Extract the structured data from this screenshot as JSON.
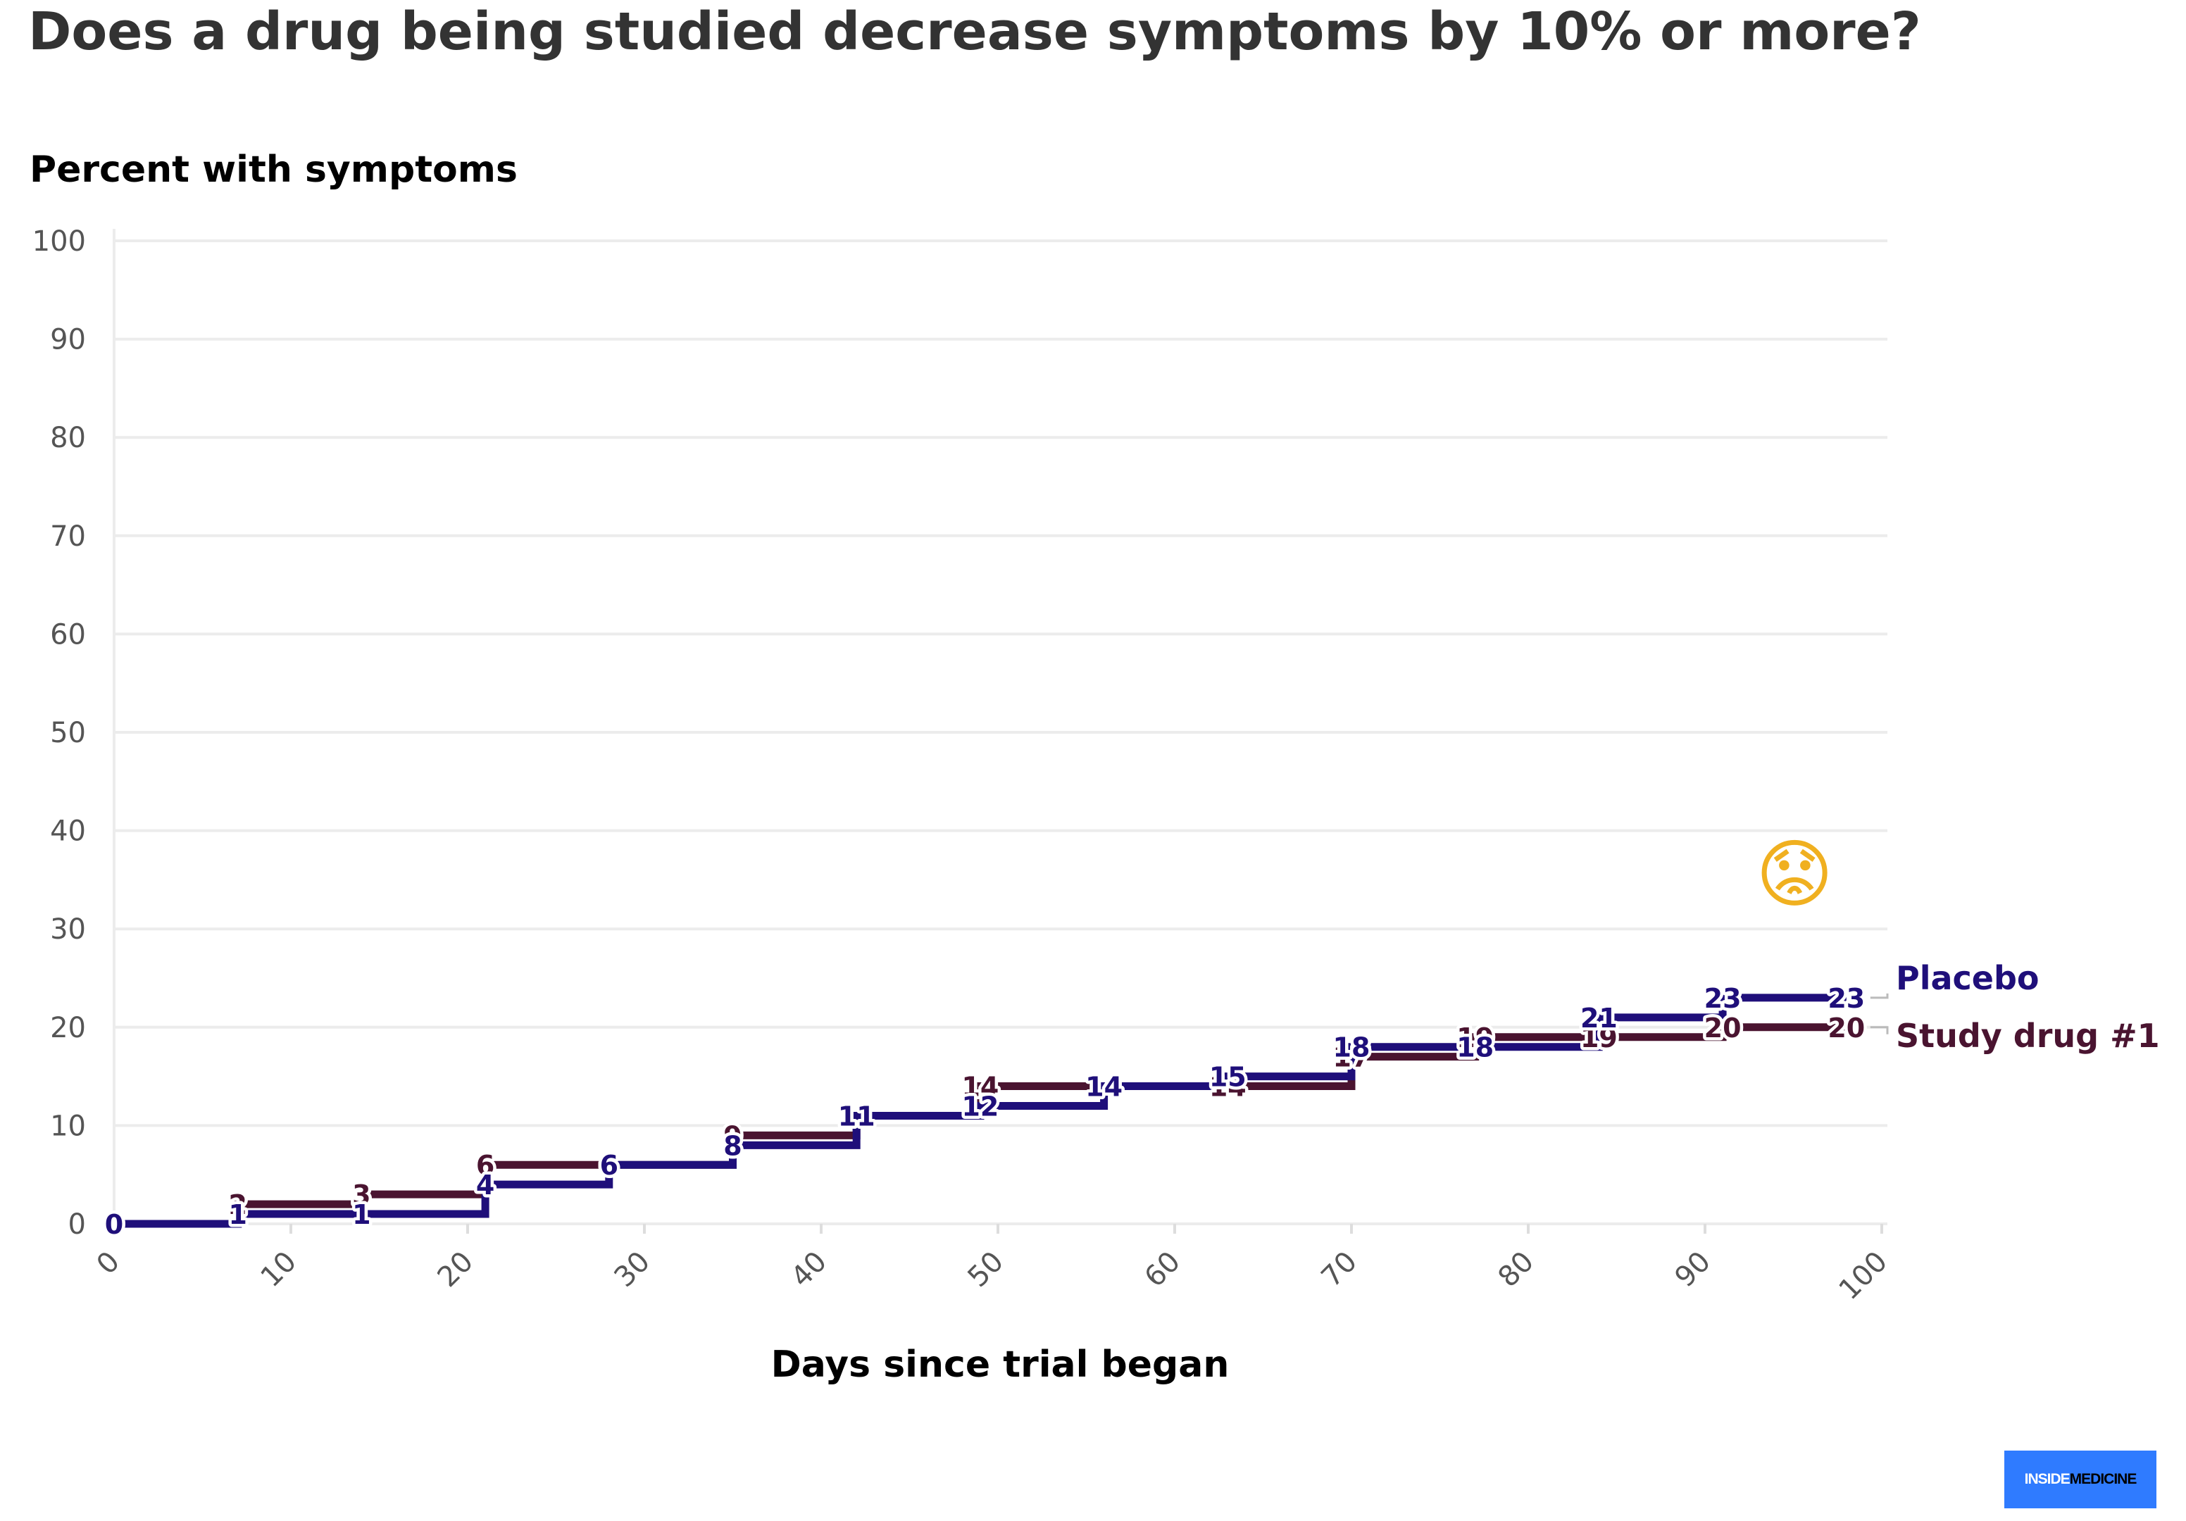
{
  "chart_data": {
    "type": "line",
    "step": true,
    "title": "Does a drug being studied decrease symptoms by 10% or more?",
    "ylabel": "Percent with symptoms",
    "xlabel": "Days since trial began",
    "xlim": [
      0,
      100
    ],
    "ylim": [
      0,
      100
    ],
    "x_ticks": [
      0,
      10,
      20,
      30,
      40,
      50,
      60,
      70,
      80,
      90,
      100
    ],
    "y_ticks": [
      0,
      10,
      20,
      30,
      40,
      50,
      60,
      70,
      80,
      90,
      100
    ],
    "grid": true,
    "series": [
      {
        "name": "Study drug #1",
        "color": "#4a1430",
        "x": [
          0,
          7,
          14,
          21,
          28,
          35,
          42,
          49,
          56,
          63,
          70,
          77,
          84,
          91,
          98
        ],
        "values": [
          0,
          2,
          3,
          6,
          6,
          9,
          11,
          14,
          14,
          14,
          17,
          19,
          19,
          20,
          20
        ]
      },
      {
        "name": "Placebo",
        "color": "#1f0f7a",
        "x": [
          0,
          7,
          14,
          21,
          28,
          35,
          42,
          49,
          56,
          63,
          70,
          77,
          84,
          91,
          98
        ],
        "values": [
          0,
          1,
          1,
          4,
          6,
          8,
          11,
          12,
          14,
          15,
          18,
          18,
          21,
          23,
          23
        ]
      }
    ],
    "annotation_emoji": "😟",
    "annotation_emoji_name": "worried-face-icon",
    "logo_text_1": "INSIDE",
    "logo_text_2": "MEDICINE"
  }
}
